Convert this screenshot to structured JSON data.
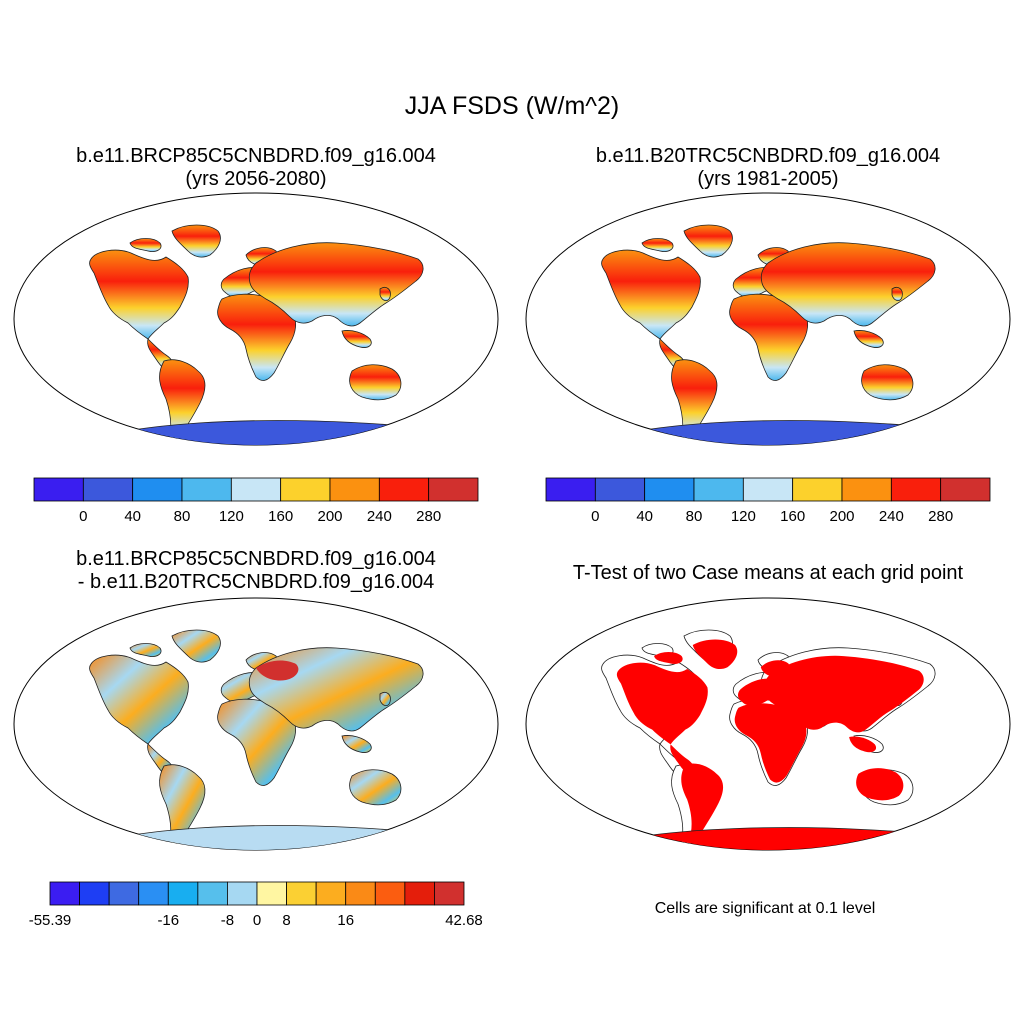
{
  "title": "JJA FSDS (W/m^2)",
  "panels": [
    {
      "id": "future",
      "title1": "b.e11.BRCP85C5CNBDRD.f09_g16.004",
      "title2": "(yrs 2056-2080)"
    },
    {
      "id": "hist",
      "title1": "b.e11.B20TRC5CNBDRD.f09_g16.004",
      "title2": "(yrs 1981-2005)"
    },
    {
      "id": "diff",
      "title1": "b.e11.BRCP85C5CNBDRD.f09_g16.004",
      "title2": "- b.e11.B20TRC5CNBDRD.f09_g16.004"
    },
    {
      "id": "ttest",
      "title1": "T-Test of two Case means at each grid point",
      "title2": ""
    }
  ],
  "colorbars": {
    "absolute": {
      "colors": [
        "#3a1ef0",
        "#3c58dc",
        "#1f8ef0",
        "#4db8ee",
        "#c8e6f6",
        "#fcd12c",
        "#fb9110",
        "#f91f0c",
        "#d1302e"
      ],
      "tick_labels": [
        "0",
        "40",
        "80",
        "120",
        "160",
        "200",
        "240",
        "280"
      ]
    },
    "difference": {
      "colors": [
        "#3b1df2",
        "#1e3ef4",
        "#3e6ae2",
        "#2a8ff3",
        "#18aef0",
        "#56bfec",
        "#a6d8f2",
        "#fff6a2",
        "#fbd033",
        "#fcad1f",
        "#fa8a16",
        "#fb5d10",
        "#e41e0b",
        "#d1302e"
      ],
      "tick_labels": [
        "-55.39",
        "-16",
        "-8",
        "0",
        "8",
        "16",
        "42.68"
      ]
    }
  },
  "note": "Cells are significant at 0.1 level",
  "colors": {
    "significant": "#ff0000",
    "land_outline": "#222222",
    "antarctica_absolute": "#3c58dc",
    "antarctica_difference": "#b8dcf2"
  }
}
